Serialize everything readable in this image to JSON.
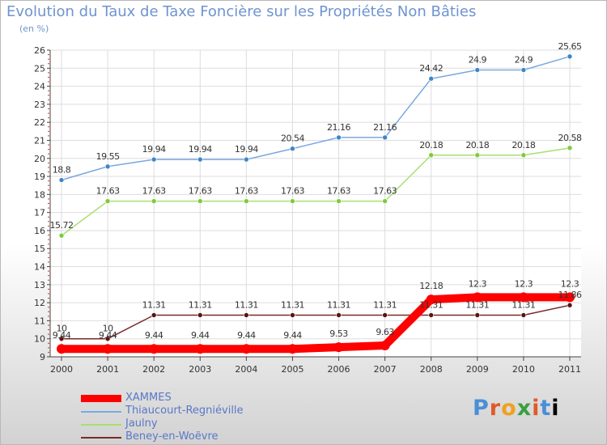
{
  "title": "Evolution du Taux de Taxe Foncière sur les Propriétés Non Bâties",
  "subtitle": "(en %)",
  "logo": [
    "P",
    "r",
    "o",
    "x",
    "i",
    "t",
    "i"
  ],
  "colors": {
    "title": "#6f94cf",
    "axis": "#444444",
    "grid": "#dddddd",
    "tick_red": "#e03030"
  },
  "chart_data": {
    "type": "line",
    "title": "Evolution du Taux de Taxe Foncière sur les Propriétés Non Bâties",
    "ylabel": "(en %)",
    "xlabel": "",
    "ylim": [
      9,
      26
    ],
    "yticks": [
      "9",
      "10",
      "11",
      "12",
      "13",
      "14",
      "15",
      "16",
      "17",
      "18",
      "19",
      "20",
      "21",
      "22",
      "23",
      "24",
      "25",
      "26"
    ],
    "x": [
      "2000",
      "2001",
      "2002",
      "2003",
      "2004",
      "2005",
      "2006",
      "2007",
      "2008",
      "2009",
      "2010",
      "2011"
    ],
    "grid": true,
    "legend_position": "bottom-left",
    "series": [
      {
        "name": "XAMMES",
        "color": "#ff0000",
        "marker": "#ff0000",
        "width": 10,
        "values": [
          9.44,
          9.44,
          9.44,
          9.44,
          9.44,
          9.44,
          9.53,
          9.63,
          12.18,
          12.3,
          12.3,
          12.3
        ],
        "labels": [
          "9.44",
          "9.44",
          "9.44",
          "9.44",
          "9.44",
          "9.44",
          "9.53",
          "9.63",
          "12.18",
          "12.3",
          "12.3",
          "12.3"
        ]
      },
      {
        "name": "Thiaucourt-Regniéville",
        "color": "#7aa8e0",
        "marker": "#3e85c8",
        "width": 1.5,
        "values": [
          18.8,
          19.55,
          19.94,
          19.94,
          19.94,
          20.54,
          21.16,
          21.16,
          24.42,
          24.9,
          24.9,
          25.65
        ],
        "labels": [
          "18.8",
          "19.55",
          "19.94",
          "19.94",
          "19.94",
          "20.54",
          "21.16",
          "21.16",
          "24.42",
          "24.9",
          "24.9",
          "25.65"
        ]
      },
      {
        "name": "Jaulny",
        "color": "#a8df6e",
        "marker": "#7ecb3a",
        "width": 1.5,
        "values": [
          15.72,
          17.63,
          17.63,
          17.63,
          17.63,
          17.63,
          17.63,
          17.63,
          20.18,
          20.18,
          20.18,
          20.58
        ],
        "labels": [
          "15.72",
          "17.63",
          "17.63",
          "17.63",
          "17.63",
          "17.63",
          "17.63",
          "17.63",
          "20.18",
          "20.18",
          "20.18",
          "20.58"
        ]
      },
      {
        "name": "Beney-en-Woëvre",
        "color": "#7a2a2a",
        "marker": "#5a1414",
        "width": 1.5,
        "values": [
          10,
          10,
          11.31,
          11.31,
          11.31,
          11.31,
          11.31,
          11.31,
          11.31,
          11.31,
          11.31,
          11.86
        ],
        "labels": [
          "10",
          "10",
          "11.31",
          "11.31",
          "11.31",
          "11.31",
          "11.31",
          "11.31",
          "11.31",
          "11.31",
          "11.31",
          "11.86"
        ]
      }
    ]
  }
}
